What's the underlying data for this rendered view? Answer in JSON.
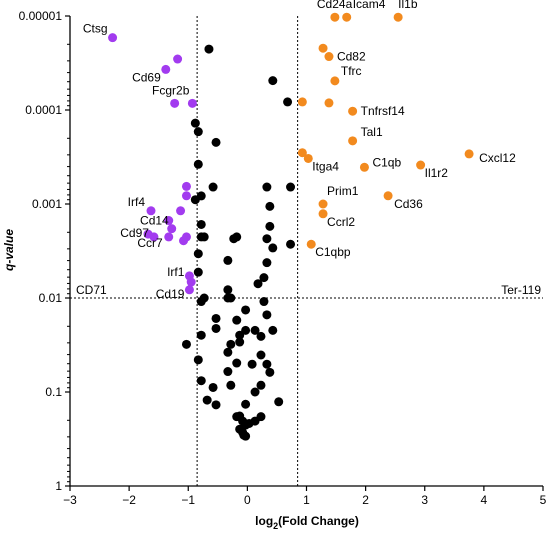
{
  "colors": {
    "up": "#f28a1e",
    "down": "#a23bef",
    "ns": "#000000"
  },
  "chart_data": {
    "type": "scatter",
    "xlabel_base": "log",
    "xlabel_sub": "2",
    "xlabel_rest": "(Fold Change)",
    "ylabel": "q-value",
    "xlim": [
      -3,
      5
    ],
    "xticks": [
      -3,
      -2,
      -1,
      0,
      1,
      2,
      3,
      4,
      5
    ],
    "y_scale": "log-reversed",
    "ylim": [
      1,
      1e-05
    ],
    "yticks": [
      {
        "value": 1e-05,
        "label": "0.00001"
      },
      {
        "value": 0.0001,
        "label": "0.0001"
      },
      {
        "value": 0.001,
        "label": "0.001"
      },
      {
        "value": 0.01,
        "label": "0.01"
      },
      {
        "value": 0.1,
        "label": "0.1"
      },
      {
        "value": 1,
        "label": "1"
      }
    ],
    "thresholds": {
      "x": [
        -0.85,
        0.85
      ],
      "y": 0.01
    },
    "corner_labels": {
      "left": "CD71",
      "right": "Ter-119"
    },
    "series": [
      {
        "group": "up",
        "points": [
          {
            "x": 1.48,
            "y": 1.03e-05,
            "label": "Cd24a"
          },
          {
            "x": 1.68,
            "y": 1.03e-05,
            "label": "Icam4"
          },
          {
            "x": 2.55,
            "y": 1.03e-05,
            "label": "Il1b"
          },
          {
            "x": 1.28,
            "y": 2.2e-05
          },
          {
            "x": 1.38,
            "y": 2.7e-05,
            "label": "Cd82"
          },
          {
            "x": 1.48,
            "y": 4.9e-05,
            "label": "Tfrc"
          },
          {
            "x": 0.93,
            "y": 8.2e-05
          },
          {
            "x": 1.38,
            "y": 8.4e-05
          },
          {
            "x": 1.78,
            "y": 0.000103,
            "label": "Tnfrsf14"
          },
          {
            "x": 1.78,
            "y": 0.000213,
            "label": "Tal1"
          },
          {
            "x": 0.93,
            "y": 0.000285
          },
          {
            "x": 1.03,
            "y": 0.000328,
            "label": "Itga4"
          },
          {
            "x": 1.98,
            "y": 0.000407,
            "label": "C1qb"
          },
          {
            "x": 2.93,
            "y": 0.000385,
            "label": "Il1r2"
          },
          {
            "x": 3.75,
            "y": 0.000293,
            "label": "Cxcl12"
          },
          {
            "x": 2.38,
            "y": 0.000818,
            "label": "Cd36"
          },
          {
            "x": 1.28,
            "y": 0.001,
            "label": "Prim1"
          },
          {
            "x": 1.28,
            "y": 0.00127,
            "label": "Ccrl2"
          },
          {
            "x": 1.08,
            "y": 0.00268,
            "label": "C1qbp"
          }
        ]
      },
      {
        "group": "down",
        "points": [
          {
            "x": -2.28,
            "y": 1.7e-05,
            "label": "Ctsg"
          },
          {
            "x": -1.18,
            "y": 2.87e-05
          },
          {
            "x": -1.38,
            "y": 3.7e-05,
            "label": "Cd69"
          },
          {
            "x": -1.23,
            "y": 8.5e-05
          },
          {
            "x": -0.93,
            "y": 8.5e-05,
            "label": "Fcgr2b"
          },
          {
            "x": -1.03,
            "y": 0.00065
          },
          {
            "x": -1.03,
            "y": 0.000818
          },
          {
            "x": -1.63,
            "y": 0.00118,
            "label": "Irf4"
          },
          {
            "x": -1.13,
            "y": 0.00118
          },
          {
            "x": -1.33,
            "y": 0.0015,
            "label": "Cd14"
          },
          {
            "x": -1.28,
            "y": 0.00183
          },
          {
            "x": -1.68,
            "y": 0.00209
          },
          {
            "x": -1.58,
            "y": 0.00224,
            "label": "Cd97"
          },
          {
            "x": -1.33,
            "y": 0.00224,
            "label": "Ccr7"
          },
          {
            "x": -1.03,
            "y": 0.00224
          },
          {
            "x": -1.08,
            "y": 0.00246
          },
          {
            "x": -0.98,
            "y": 0.00582,
            "label": "Irf1"
          },
          {
            "x": -0.95,
            "y": 0.00676
          },
          {
            "x": -0.98,
            "y": 0.00818,
            "label": "Cd19"
          }
        ]
      },
      {
        "group": "ns",
        "points": [
          {
            "x": -0.65,
            "y": 2.25e-05
          },
          {
            "x": 0.43,
            "y": 4.87e-05
          },
          {
            "x": 0.68,
            "y": 8.2e-05
          },
          {
            "x": -0.88,
            "y": 0.000138
          },
          {
            "x": -0.83,
            "y": 0.00017
          },
          {
            "x": -0.53,
            "y": 0.000221
          },
          {
            "x": -0.83,
            "y": 0.000378
          },
          {
            "x": -0.58,
            "y": 0.00066
          },
          {
            "x": 0.33,
            "y": 0.00066
          },
          {
            "x": 0.73,
            "y": 0.00066
          },
          {
            "x": -0.78,
            "y": 0.00082
          },
          {
            "x": -0.88,
            "y": 0.0009
          },
          {
            "x": 0.38,
            "y": 0.00106
          },
          {
            "x": -0.78,
            "y": 0.00165
          },
          {
            "x": 0.38,
            "y": 0.00173
          },
          {
            "x": -0.78,
            "y": 0.00224
          },
          {
            "x": -0.73,
            "y": 0.00224
          },
          {
            "x": -0.18,
            "y": 0.00224
          },
          {
            "x": -0.23,
            "y": 0.00234
          },
          {
            "x": 0.33,
            "y": 0.00234
          },
          {
            "x": 0.73,
            "y": 0.00268
          },
          {
            "x": 0.43,
            "y": 0.00293
          },
          {
            "x": -0.83,
            "y": 0.00338
          },
          {
            "x": -0.33,
            "y": 0.00398
          },
          {
            "x": 0.33,
            "y": 0.00421
          },
          {
            "x": -0.83,
            "y": 0.00531
          },
          {
            "x": 0.28,
            "y": 0.00607
          },
          {
            "x": 0.18,
            "y": 0.00705
          },
          {
            "x": -0.33,
            "y": 0.00818
          },
          {
            "x": -0.73,
            "y": 0.01
          },
          {
            "x": -0.33,
            "y": 0.01
          },
          {
            "x": -0.28,
            "y": 0.01
          },
          {
            "x": -0.78,
            "y": 0.0109
          },
          {
            "x": 0.28,
            "y": 0.0109
          },
          {
            "x": -0.03,
            "y": 0.0134
          },
          {
            "x": 0.33,
            "y": 0.0151
          },
          {
            "x": -0.53,
            "y": 0.0165
          },
          {
            "x": -0.18,
            "y": 0.0172
          },
          {
            "x": -0.53,
            "y": 0.0211
          },
          {
            "x": -0.03,
            "y": 0.0221
          },
          {
            "x": 0.13,
            "y": 0.0221
          },
          {
            "x": 0.43,
            "y": 0.0221
          },
          {
            "x": -0.78,
            "y": 0.0249
          },
          {
            "x": -0.13,
            "y": 0.0249
          },
          {
            "x": 0.23,
            "y": 0.0256
          },
          {
            "x": -0.13,
            "y": 0.0294
          },
          {
            "x": -1.03,
            "y": 0.0311
          },
          {
            "x": -0.28,
            "y": 0.0311
          },
          {
            "x": -0.33,
            "y": 0.0378
          },
          {
            "x": 0.23,
            "y": 0.0404
          },
          {
            "x": -0.83,
            "y": 0.0455
          },
          {
            "x": -0.18,
            "y": 0.0492
          },
          {
            "x": 0.33,
            "y": 0.0506
          },
          {
            "x": 0.08,
            "y": 0.0506
          },
          {
            "x": -0.33,
            "y": 0.0606
          },
          {
            "x": 0.38,
            "y": 0.0618
          },
          {
            "x": -0.78,
            "y": 0.0758
          },
          {
            "x": -0.28,
            "y": 0.0848
          },
          {
            "x": 0.23,
            "y": 0.0848
          },
          {
            "x": -0.58,
            "y": 0.0895
          },
          {
            "x": 0.13,
            "y": 0.1
          },
          {
            "x": -0.68,
            "y": 0.122
          },
          {
            "x": 0.53,
            "y": 0.127
          },
          {
            "x": -0.53,
            "y": 0.137
          },
          {
            "x": -0.03,
            "y": 0.135
          },
          {
            "x": -0.13,
            "y": 0.18
          },
          {
            "x": -0.18,
            "y": 0.183
          },
          {
            "x": 0.23,
            "y": 0.183
          },
          {
            "x": -0.08,
            "y": 0.204
          },
          {
            "x": 0.13,
            "y": 0.204
          },
          {
            "x": -0.03,
            "y": 0.225
          },
          {
            "x": 0.03,
            "y": 0.216
          },
          {
            "x": -0.13,
            "y": 0.249
          },
          {
            "x": -0.08,
            "y": 0.27
          },
          {
            "x": -0.03,
            "y": 0.295
          },
          {
            "x": -0.06,
            "y": 0.288
          }
        ]
      }
    ]
  }
}
